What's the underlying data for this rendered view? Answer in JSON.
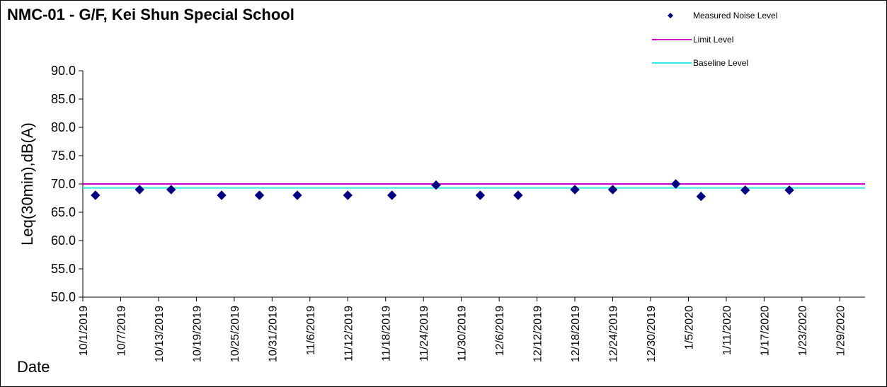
{
  "chart_data": {
    "type": "scatter",
    "title": "NMC-01 - G/F, Kei Shun Special School",
    "ylabel": "Leq(30min),dB(A)",
    "xlabel": "Date",
    "ylim": [
      50.0,
      90.0
    ],
    "y_ticks": [
      "50.0",
      "55.0",
      "60.0",
      "65.0",
      "70.0",
      "75.0",
      "80.0",
      "85.0",
      "90.0"
    ],
    "x_range": [
      "2019-10-01",
      "2020-02-02"
    ],
    "x_ticks": [
      {
        "date": "2019-10-01",
        "label": "10/1/2019"
      },
      {
        "date": "2019-10-07",
        "label": "10/7/2019"
      },
      {
        "date": "2019-10-13",
        "label": "10/13/2019"
      },
      {
        "date": "2019-10-19",
        "label": "10/19/2019"
      },
      {
        "date": "2019-10-25",
        "label": "10/25/2019"
      },
      {
        "date": "2019-10-31",
        "label": "10/31/2019"
      },
      {
        "date": "2019-11-06",
        "label": "11/6/2019"
      },
      {
        "date": "2019-11-12",
        "label": "11/12/2019"
      },
      {
        "date": "2019-11-18",
        "label": "11/18/2019"
      },
      {
        "date": "2019-11-24",
        "label": "11/24/2019"
      },
      {
        "date": "2019-11-30",
        "label": "11/30/2019"
      },
      {
        "date": "2019-12-06",
        "label": "12/6/2019"
      },
      {
        "date": "2019-12-12",
        "label": "12/12/2019"
      },
      {
        "date": "2019-12-18",
        "label": "12/18/2019"
      },
      {
        "date": "2019-12-24",
        "label": "12/24/2019"
      },
      {
        "date": "2019-12-30",
        "label": "12/30/2019"
      },
      {
        "date": "2020-01-05",
        "label": "1/5/2020"
      },
      {
        "date": "2020-01-11",
        "label": "1/11/2020"
      },
      {
        "date": "2020-01-17",
        "label": "1/17/2020"
      },
      {
        "date": "2020-01-23",
        "label": "1/23/2020"
      },
      {
        "date": "2020-01-29",
        "label": "1/29/2020"
      }
    ],
    "series": [
      {
        "name": "Measured Noise Level",
        "marker": "diamond",
        "color": "#000080",
        "points": [
          {
            "x": "2019-10-03",
            "y": 68.0
          },
          {
            "x": "2019-10-10",
            "y": 69.0
          },
          {
            "x": "2019-10-15",
            "y": 69.0
          },
          {
            "x": "2019-10-23",
            "y": 68.0
          },
          {
            "x": "2019-10-29",
            "y": 68.0
          },
          {
            "x": "2019-11-04",
            "y": 68.0
          },
          {
            "x": "2019-11-12",
            "y": 68.0
          },
          {
            "x": "2019-11-19",
            "y": 68.0
          },
          {
            "x": "2019-11-26",
            "y": 69.8
          },
          {
            "x": "2019-12-03",
            "y": 68.0
          },
          {
            "x": "2019-12-09",
            "y": 68.0
          },
          {
            "x": "2019-12-18",
            "y": 69.0
          },
          {
            "x": "2019-12-24",
            "y": 69.0
          },
          {
            "x": "2020-01-03",
            "y": 70.0
          },
          {
            "x": "2020-01-07",
            "y": 67.8
          },
          {
            "x": "2020-01-14",
            "y": 68.9
          },
          {
            "x": "2020-01-21",
            "y": 68.9
          }
        ]
      },
      {
        "name": "Limit Level",
        "type": "line",
        "color": "#cc00cc",
        "y": 70.0
      },
      {
        "name": "Baseline Level",
        "type": "line",
        "color": "#33e6e6",
        "y": 69.3
      }
    ],
    "grid": false,
    "legend_position": "top-right"
  }
}
